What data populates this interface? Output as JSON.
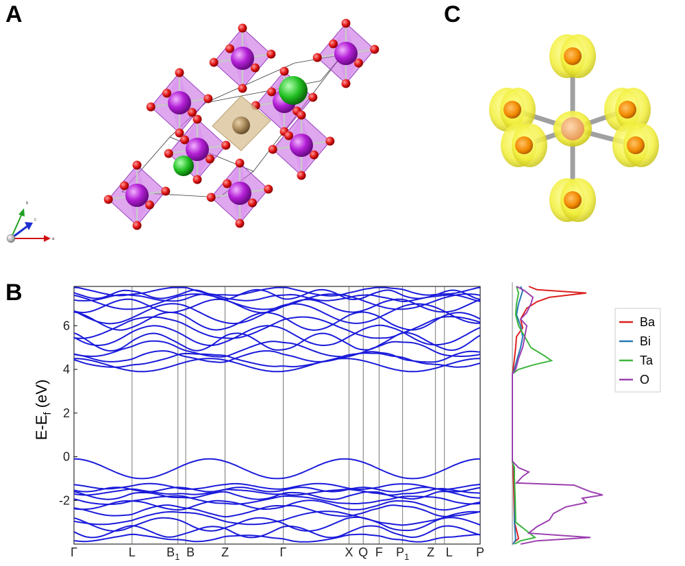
{
  "panels": {
    "a": "A",
    "b": "B",
    "c": "C"
  },
  "structure": {
    "axis_letters": [
      "a",
      "b",
      "c"
    ]
  },
  "chart_data": {
    "type": "line",
    "ylabel_main": "E-E",
    "ylabel_sub": "f",
    "ylabel_unit": " (eV)",
    "ylim": [
      -4.0,
      7.8
    ],
    "yticks": [
      {
        "value": 6,
        "label": "6"
      },
      {
        "value": 4,
        "label": "4"
      },
      {
        "value": 2,
        "label": "2"
      },
      {
        "value": 0,
        "label": "0"
      },
      {
        "value": -2,
        "label": "-2"
      }
    ],
    "kpoints": [
      {
        "pos": 0.0,
        "main": "Γ",
        "sub": ""
      },
      {
        "pos": 0.143,
        "main": "L",
        "sub": ""
      },
      {
        "pos": 0.256,
        "main": "B",
        "sub": "1"
      },
      {
        "pos": 0.275,
        "main": "B",
        "sub": ""
      },
      {
        "pos": 0.372,
        "main": "Z",
        "sub": ""
      },
      {
        "pos": 0.515,
        "main": "Γ",
        "sub": ""
      },
      {
        "pos": 0.677,
        "main": "X",
        "sub": ""
      },
      {
        "pos": 0.712,
        "main": "Q",
        "sub": ""
      },
      {
        "pos": 0.751,
        "main": "F",
        "sub": ""
      },
      {
        "pos": 0.809,
        "main": "P",
        "sub": "1"
      },
      {
        "pos": 0.89,
        "main": "Z",
        "sub": ""
      },
      {
        "pos": 0.912,
        "main": "L",
        "sub": ""
      },
      {
        "pos": 1.0,
        "main": "P",
        "sub": ""
      }
    ],
    "band_color": "#1a1adb",
    "conduction_bands": [
      {
        "base": 7.55,
        "amp": 0.18,
        "freq": 1.3,
        "phase": 0.2
      },
      {
        "base": 7.45,
        "amp": 0.2,
        "freq": 2.1,
        "phase": 1.0
      },
      {
        "base": 7.3,
        "amp": 0.15,
        "freq": 1.7,
        "phase": 2.1
      },
      {
        "base": 7.1,
        "amp": 0.35,
        "freq": 1.0,
        "phase": 0.6
      },
      {
        "base": 6.9,
        "amp": 0.3,
        "freq": 1.5,
        "phase": 2.6
      },
      {
        "base": 6.55,
        "amp": 0.45,
        "freq": 1.1,
        "phase": 1.3
      },
      {
        "base": 6.2,
        "amp": 0.4,
        "freq": 1.4,
        "phase": 0.1
      },
      {
        "base": 5.9,
        "amp": 0.5,
        "freq": 0.9,
        "phase": 3.0
      },
      {
        "base": 5.55,
        "amp": 0.45,
        "freq": 1.2,
        "phase": 1.8
      },
      {
        "base": 5.25,
        "amp": 0.4,
        "freq": 1.6,
        "phase": 0.4
      },
      {
        "base": 4.95,
        "amp": 0.35,
        "freq": 1.1,
        "phase": 2.2
      },
      {
        "base": 4.6,
        "amp": 0.25,
        "freq": 1.3,
        "phase": 0.9
      },
      {
        "base": 4.4,
        "amp": 0.3,
        "freq": 0.8,
        "phase": 1.6
      },
      {
        "base": 4.2,
        "amp": 0.3,
        "freq": 1.0,
        "phase": 0.0
      }
    ],
    "valence_bands": [
      {
        "base": -0.55,
        "amp": 0.45,
        "freq": 1.0,
        "phase": 0.0
      },
      {
        "base": -1.35,
        "amp": 0.12,
        "freq": 1.6,
        "phase": 0.7
      },
      {
        "base": -1.5,
        "amp": 0.1,
        "freq": 2.2,
        "phase": 1.9
      },
      {
        "base": -1.65,
        "amp": 0.12,
        "freq": 1.3,
        "phase": 2.8
      },
      {
        "base": -1.8,
        "amp": 0.15,
        "freq": 1.8,
        "phase": 0.3
      },
      {
        "base": -2.0,
        "amp": 0.18,
        "freq": 1.1,
        "phase": 1.4
      },
      {
        "base": -2.2,
        "amp": 0.2,
        "freq": 1.5,
        "phase": 2.4
      },
      {
        "base": -2.45,
        "amp": 0.25,
        "freq": 1.2,
        "phase": 0.9
      },
      {
        "base": -2.8,
        "amp": 0.3,
        "freq": 0.9,
        "phase": 2.0
      },
      {
        "base": -3.1,
        "amp": 0.3,
        "freq": 1.4,
        "phase": 0.5
      },
      {
        "base": -3.45,
        "amp": 0.25,
        "freq": 1.7,
        "phase": 1.7
      },
      {
        "base": -3.75,
        "amp": 0.15,
        "freq": 1.2,
        "phase": 2.9
      }
    ],
    "dos_legend": [
      {
        "name": "Ba",
        "color": "#dd1f1f"
      },
      {
        "name": "Bi",
        "color": "#2878b5"
      },
      {
        "name": "Ta",
        "color": "#3db53d"
      },
      {
        "name": "O",
        "color": "#9b3fb0"
      }
    ],
    "dos_series": [
      {
        "name": "Ba",
        "color": "#dd1f1f",
        "points": [
          [
            7.8,
            0.4
          ],
          [
            7.65,
            0.6
          ],
          [
            7.5,
            1.8
          ],
          [
            7.3,
            0.9
          ],
          [
            7.1,
            0.6
          ],
          [
            6.8,
            0.35
          ],
          [
            6.3,
            0.2
          ],
          [
            5.9,
            0.25
          ],
          [
            5.5,
            0.1
          ],
          [
            5.0,
            0.08
          ],
          [
            4.5,
            0.05
          ],
          [
            4.0,
            0.02
          ],
          [
            3.8,
            0.0
          ],
          [
            -0.2,
            0.0
          ],
          [
            -0.5,
            0.02
          ],
          [
            -1.2,
            0.03
          ],
          [
            -2.0,
            0.04
          ],
          [
            -3.0,
            0.05
          ],
          [
            -3.5,
            0.12
          ],
          [
            -3.75,
            0.15
          ],
          [
            -3.9,
            0.05
          ],
          [
            -4.0,
            0.02
          ]
        ]
      },
      {
        "name": "Bi",
        "color": "#2878b5",
        "points": [
          [
            7.8,
            0.2
          ],
          [
            7.6,
            0.25
          ],
          [
            7.3,
            0.2
          ],
          [
            7.0,
            0.15
          ],
          [
            6.5,
            0.1
          ],
          [
            6.0,
            0.2
          ],
          [
            5.5,
            0.25
          ],
          [
            5.0,
            0.2
          ],
          [
            4.5,
            0.12
          ],
          [
            4.0,
            0.05
          ],
          [
            3.8,
            0.0
          ],
          [
            -0.2,
            0.0
          ],
          [
            -0.5,
            0.04
          ],
          [
            -1.0,
            0.05
          ],
          [
            -2.0,
            0.06
          ],
          [
            -3.0,
            0.05
          ],
          [
            -3.8,
            0.08
          ],
          [
            -4.0,
            0.02
          ]
        ]
      },
      {
        "name": "Ta",
        "color": "#3db53d",
        "points": [
          [
            7.8,
            0.1
          ],
          [
            7.5,
            0.15
          ],
          [
            7.0,
            0.1
          ],
          [
            6.5,
            0.08
          ],
          [
            6.0,
            0.15
          ],
          [
            5.5,
            0.3
          ],
          [
            5.0,
            0.45
          ],
          [
            4.6,
            0.8
          ],
          [
            4.4,
            0.95
          ],
          [
            4.2,
            0.5
          ],
          [
            4.0,
            0.15
          ],
          [
            3.8,
            0.0
          ],
          [
            -0.2,
            0.0
          ],
          [
            -0.5,
            0.05
          ],
          [
            -1.0,
            0.05
          ],
          [
            -2.0,
            0.07
          ],
          [
            -3.0,
            0.08
          ],
          [
            -3.7,
            0.55
          ],
          [
            -3.85,
            0.2
          ],
          [
            -4.0,
            0.05
          ]
        ]
      },
      {
        "name": "O",
        "color": "#9b3fb0",
        "points": [
          [
            7.8,
            0.1
          ],
          [
            7.6,
            0.3
          ],
          [
            7.3,
            0.5
          ],
          [
            7.0,
            0.45
          ],
          [
            6.6,
            0.35
          ],
          [
            6.3,
            0.2
          ],
          [
            6.0,
            0.35
          ],
          [
            5.5,
            0.3
          ],
          [
            5.0,
            0.25
          ],
          [
            4.5,
            0.15
          ],
          [
            4.0,
            0.08
          ],
          [
            3.8,
            0.0
          ],
          [
            -0.2,
            0.0
          ],
          [
            -0.5,
            0.15
          ],
          [
            -0.7,
            0.4
          ],
          [
            -0.9,
            0.25
          ],
          [
            -1.2,
            0.1
          ],
          [
            -1.3,
            1.5
          ],
          [
            -1.6,
            1.9
          ],
          [
            -1.75,
            2.2
          ],
          [
            -1.9,
            1.7
          ],
          [
            -2.1,
            1.8
          ],
          [
            -2.3,
            1.3
          ],
          [
            -2.6,
            1.0
          ],
          [
            -2.9,
            0.9
          ],
          [
            -3.2,
            0.6
          ],
          [
            -3.5,
            0.4
          ],
          [
            -3.7,
            1.9
          ],
          [
            -3.85,
            0.6
          ],
          [
            -4.0,
            0.2
          ]
        ]
      }
    ]
  }
}
